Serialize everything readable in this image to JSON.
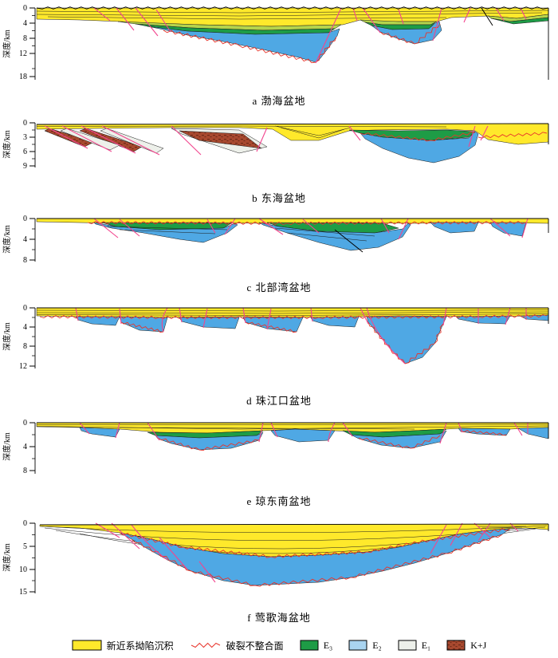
{
  "figure": {
    "axis_label": "深度/km",
    "panels": [
      {
        "id": "a",
        "caption": "a 渤海盆地",
        "ticks": [
          "0",
          "4",
          "8",
          "12",
          "18"
        ]
      },
      {
        "id": "b",
        "caption": "b 东海盆地",
        "ticks": [
          "0",
          "3",
          "6",
          "9"
        ]
      },
      {
        "id": "c",
        "caption": "c 北部湾盆地",
        "ticks": [
          "0",
          "4",
          "8"
        ]
      },
      {
        "id": "d",
        "caption": "d 珠江口盆地",
        "ticks": [
          "0",
          "4",
          "8",
          "12"
        ]
      },
      {
        "id": "e",
        "caption": "e 琼东南盆地",
        "ticks": [
          "0",
          "4",
          "8"
        ]
      },
      {
        "id": "f",
        "caption": "f 莺歌海盆地",
        "ticks": [
          "0",
          "5",
          "10",
          "15"
        ]
      }
    ],
    "legend": [
      {
        "label": "新近系拗陷沉积",
        "swatch": "neogene-yellow"
      },
      {
        "label": "破裂不整合面",
        "swatch": "breakup-unconformity-line"
      },
      {
        "label": "E₃",
        "swatch": "e3-green"
      },
      {
        "label": "E₂",
        "swatch": "e2-blue"
      },
      {
        "label": "E₁",
        "swatch": "e1-gray"
      },
      {
        "label": "K+J",
        "swatch": "kj-brick"
      }
    ]
  },
  "colors": {
    "neogene": "#FFE92B",
    "e3": "#1E9C46",
    "e3_light": "#B5D44C",
    "e2": "#4FA8E4",
    "e2_legend": "#A9D4F0",
    "e1": "#EDF0EA",
    "kj": "#A8492F",
    "kj_dark": "#6E2A18",
    "fault": "#F2458E",
    "unconformity": "#E8352C",
    "line": "#000000"
  }
}
